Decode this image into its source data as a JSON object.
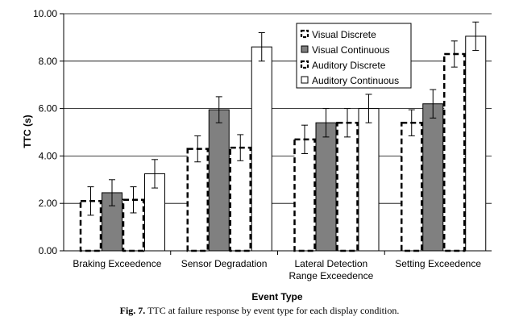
{
  "chart_data": {
    "type": "bar",
    "title": "",
    "xlabel": "Event Type",
    "ylabel": "TTC (s)",
    "ylim": [
      0,
      10
    ],
    "yticks": [
      "0.00",
      "2.00",
      "4.00",
      "6.00",
      "8.00",
      "10.00"
    ],
    "grid": true,
    "legend_position": "top-center",
    "categories": [
      [
        "Braking Exceedence"
      ],
      [
        "Sensor Degradation"
      ],
      [
        "Lateral Detection",
        "Range Exceedence"
      ],
      [
        "Setting Exceedence"
      ]
    ],
    "series": [
      {
        "name": "Visual Discrete",
        "style": "dashed",
        "values": [
          2.1,
          4.3,
          4.7,
          5.4
        ],
        "error": [
          0.6,
          0.55,
          0.6,
          0.55
        ]
      },
      {
        "name": "Visual Continuous",
        "style": "gray",
        "values": [
          2.45,
          5.95,
          5.4,
          6.2
        ],
        "error": [
          0.55,
          0.55,
          0.6,
          0.6
        ]
      },
      {
        "name": "Auditory Discrete",
        "style": "dashed",
        "values": [
          2.15,
          4.35,
          5.4,
          8.3
        ],
        "error": [
          0.55,
          0.55,
          0.6,
          0.55
        ]
      },
      {
        "name": "Auditory Continuous",
        "style": "white",
        "values": [
          3.25,
          8.6,
          6.0,
          9.05
        ],
        "error": [
          0.6,
          0.6,
          0.6,
          0.6
        ]
      }
    ],
    "colors": {
      "gray": "#808080",
      "white": "#ffffff",
      "edge": "#000000",
      "grid": "#000000"
    }
  },
  "caption": {
    "label": "Fig. 7.",
    "text": " TTC at failure response by event type for each display condition."
  }
}
